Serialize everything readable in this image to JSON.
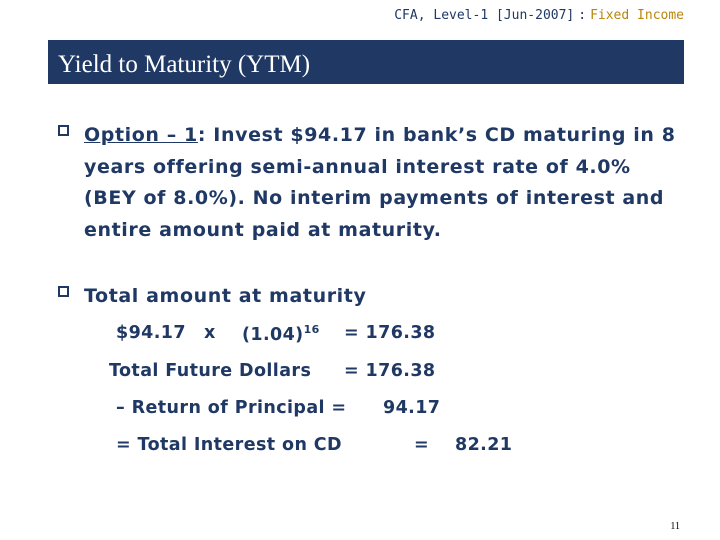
{
  "header": {
    "course": "CFA, Level-1 [Jun-2007]",
    "separator": ":",
    "topic": "Fixed Income"
  },
  "title": "Yield to Maturity (YTM)",
  "bullet1": {
    "label": "Option – 1",
    "text": ": Invest $94.17 in bank’s CD maturing in 8 years offering semi-annual interest rate of 4.0% (BEY of 8.0%). No interim payments of interest and entire amount paid at maturity."
  },
  "bullet2": {
    "text": "Total amount at maturity"
  },
  "calculation": {
    "principal": "$94.17",
    "times": "x",
    "factor_base": "(1.04)",
    "factor_exponent": "16",
    "eq1": "= 176.38",
    "future_label": "Total Future Dollars",
    "eq2": "= 176.38",
    "return_label": "– Return of Principal =",
    "return_value": "94.17",
    "interest_label": "= Total Interest on CD",
    "interest_eq": "=",
    "interest_value": "82.21"
  },
  "page_number": "11",
  "colors": {
    "navy": "#1f3864",
    "gold": "#b8860b",
    "background": "#ffffff"
  }
}
